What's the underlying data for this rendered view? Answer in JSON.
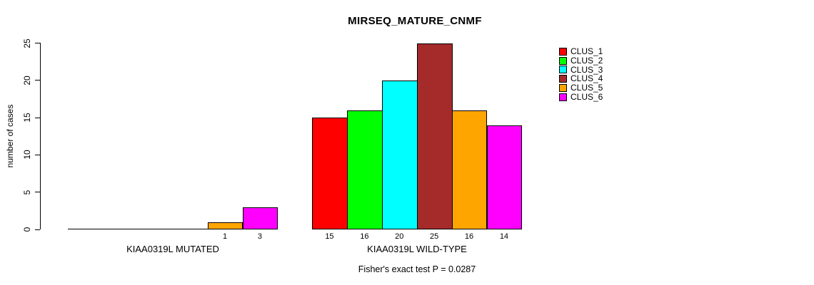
{
  "chart_data": {
    "type": "bar",
    "title": "MIRSEQ_MATURE_CNMF",
    "ylabel": "number of cases",
    "xlabel": "",
    "ylim": [
      0,
      25
    ],
    "yticks": [
      0,
      5,
      10,
      15,
      20,
      25
    ],
    "grid": false,
    "legend_position": "right",
    "series": [
      {
        "name": "CLUS_1",
        "color": "#FF0000"
      },
      {
        "name": "CLUS_2",
        "color": "#00FF00"
      },
      {
        "name": "CLUS_3",
        "color": "#00FFFF"
      },
      {
        "name": "CLUS_4",
        "color": "#A52A2A"
      },
      {
        "name": "CLUS_5",
        "color": "#FFA500"
      },
      {
        "name": "CLUS_6",
        "color": "#FF00FF"
      }
    ],
    "groups": [
      {
        "label": "KIAA0319L MUTATED",
        "values": [
          0,
          0,
          0,
          0,
          1,
          3
        ],
        "bar_labels": [
          "",
          "",
          "",
          "",
          "1",
          "3"
        ]
      },
      {
        "label": "KIAA0319L WILD-TYPE",
        "values": [
          15,
          16,
          20,
          25,
          16,
          14
        ],
        "bar_labels": [
          "15",
          "16",
          "20",
          "25",
          "16",
          "14"
        ]
      }
    ],
    "footnote": "Fisher's exact test P = 0.0287",
    "axis_color": "#000000",
    "background_color": "#FFFFFF"
  }
}
